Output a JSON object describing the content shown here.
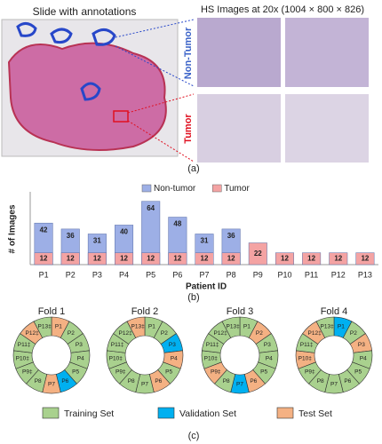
{
  "panel_a": {
    "slide_title": "Slide with annotations",
    "hs_title": "HS Images at 20x (1004 × 800 × 826)",
    "non_tumor_label": "Non-Tumor",
    "tumor_label": "Tumor",
    "caption": "(a)"
  },
  "chart_data": {
    "type": "bar",
    "caption": "(b)",
    "ylabel": "# of Images",
    "xlabel": "Patient ID",
    "categories": [
      "P1",
      "P2",
      "P3",
      "P4",
      "P5",
      "P6",
      "P7",
      "P8",
      "P9",
      "P10",
      "P11",
      "P12",
      "P13"
    ],
    "series": [
      {
        "name": "Non-tumor",
        "color": "#9dafe6",
        "values": [
          42,
          36,
          31,
          40,
          64,
          48,
          31,
          36,
          null,
          null,
          null,
          null,
          null
        ]
      },
      {
        "name": "Tumor",
        "color": "#f4a3a3",
        "values": [
          12,
          12,
          12,
          12,
          12,
          12,
          12,
          12,
          22,
          12,
          12,
          12,
          12
        ]
      }
    ],
    "ylim": [
      0,
      70
    ]
  },
  "folds": {
    "caption": "(c)",
    "legend": [
      {
        "name": "Training Set",
        "color": "#a9d18e"
      },
      {
        "name": "Validation Set",
        "color": "#00b0f0"
      },
      {
        "name": "Test Set",
        "color": "#f4b183"
      }
    ],
    "items": [
      {
        "title": "Fold 1",
        "segments": [
          {
            "label": "P1",
            "color": "#f4b183"
          },
          {
            "label": "P2",
            "color": "#a9d18e"
          },
          {
            "label": "P3",
            "color": "#a9d18e"
          },
          {
            "label": "P4",
            "color": "#a9d18e"
          },
          {
            "label": "P5",
            "color": "#a9d18e"
          },
          {
            "label": "P6",
            "color": "#00b0f0"
          },
          {
            "label": "P7",
            "color": "#f4b183"
          },
          {
            "label": "P8",
            "color": "#a9d18e"
          },
          {
            "label": "P9‡",
            "color": "#a9d18e"
          },
          {
            "label": "P10‡",
            "color": "#a9d18e"
          },
          {
            "label": "P11‡",
            "color": "#a9d18e"
          },
          {
            "label": "P12‡",
            "color": "#f4b183"
          },
          {
            "label": "P13‡",
            "color": "#a9d18e"
          }
        ]
      },
      {
        "title": "Fold 2",
        "segments": [
          {
            "label": "P1",
            "color": "#a9d18e"
          },
          {
            "label": "P2",
            "color": "#a9d18e"
          },
          {
            "label": "P3",
            "color": "#00b0f0"
          },
          {
            "label": "P4",
            "color": "#f4b183"
          },
          {
            "label": "P5",
            "color": "#a9d18e"
          },
          {
            "label": "P6",
            "color": "#f4b183"
          },
          {
            "label": "P7",
            "color": "#a9d18e"
          },
          {
            "label": "P8",
            "color": "#a9d18e"
          },
          {
            "label": "P9‡",
            "color": "#a9d18e"
          },
          {
            "label": "P10‡",
            "color": "#a9d18e"
          },
          {
            "label": "P11‡",
            "color": "#a9d18e"
          },
          {
            "label": "P12‡",
            "color": "#a9d18e"
          },
          {
            "label": "P13‡",
            "color": "#f4b183"
          }
        ]
      },
      {
        "title": "Fold 3",
        "segments": [
          {
            "label": "P1",
            "color": "#a9d18e"
          },
          {
            "label": "P2",
            "color": "#f4b183"
          },
          {
            "label": "P3",
            "color": "#a9d18e"
          },
          {
            "label": "P4",
            "color": "#a9d18e"
          },
          {
            "label": "P5",
            "color": "#a9d18e"
          },
          {
            "label": "P6",
            "color": "#f4b183"
          },
          {
            "label": "P7",
            "color": "#00b0f0"
          },
          {
            "label": "P8",
            "color": "#a9d18e"
          },
          {
            "label": "P9‡",
            "color": "#f4b183"
          },
          {
            "label": "P10‡",
            "color": "#a9d18e"
          },
          {
            "label": "P11‡",
            "color": "#a9d18e"
          },
          {
            "label": "P12‡",
            "color": "#a9d18e"
          },
          {
            "label": "P13‡",
            "color": "#a9d18e"
          }
        ]
      },
      {
        "title": "Fold 4",
        "segments": [
          {
            "label": "P1",
            "color": "#00b0f0"
          },
          {
            "label": "P2",
            "color": "#a9d18e"
          },
          {
            "label": "P3",
            "color": "#f4b183"
          },
          {
            "label": "P4",
            "color": "#a9d18e"
          },
          {
            "label": "P5",
            "color": "#a9d18e"
          },
          {
            "label": "P6",
            "color": "#a9d18e"
          },
          {
            "label": "P7",
            "color": "#a9d18e"
          },
          {
            "label": "P8",
            "color": "#a9d18e"
          },
          {
            "label": "P9‡",
            "color": "#a9d18e"
          },
          {
            "label": "P10‡",
            "color": "#f4b183"
          },
          {
            "label": "P11‡",
            "color": "#a9d18e"
          },
          {
            "label": "P12‡",
            "color": "#f4b183"
          },
          {
            "label": "P13‡",
            "color": "#a9d18e"
          }
        ]
      }
    ]
  }
}
